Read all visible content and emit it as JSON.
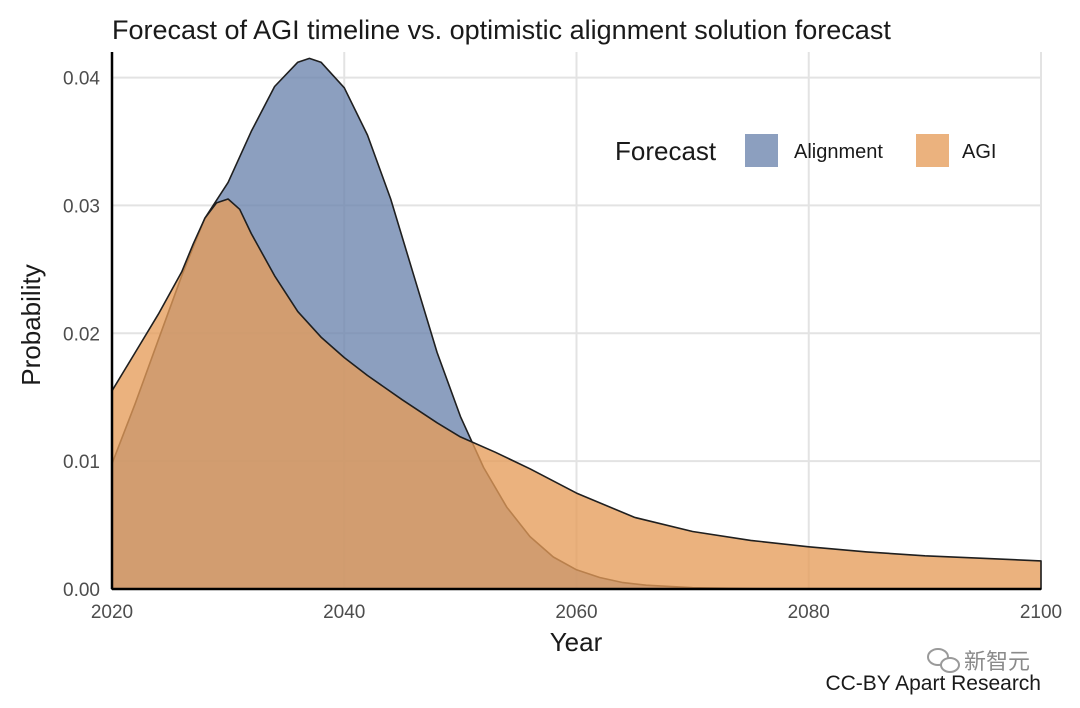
{
  "chart_data": {
    "type": "area",
    "title": "Forecast of AGI timeline vs. optimistic alignment solution forecast",
    "xlabel": "Year",
    "ylabel": "Probability",
    "xlim": [
      2020,
      2100
    ],
    "ylim": [
      0,
      0.042
    ],
    "x_ticks": [
      2020,
      2040,
      2060,
      2080,
      2100
    ],
    "x_tick_labels": [
      "2020",
      "2040",
      "2060",
      "2080",
      "2100"
    ],
    "y_ticks": [
      0,
      0.01,
      0.02,
      0.03,
      0.04
    ],
    "y_tick_labels": [
      "0.00",
      "0.01",
      "0.02",
      "0.03",
      "0.04"
    ],
    "grid": true,
    "legend": {
      "title": "Forecast",
      "position": "top-right",
      "entries": [
        "Alignment",
        "AGI"
      ]
    },
    "caption": "CC-BY Apart Research",
    "watermark": "新智元",
    "series": [
      {
        "name": "Alignment",
        "color": "#6b84ad",
        "x": [
          2020,
          2022,
          2024,
          2026,
          2028,
          2030,
          2032,
          2034,
          2036,
          2037,
          2038,
          2040,
          2042,
          2044,
          2046,
          2048,
          2050,
          2052,
          2054,
          2056,
          2058,
          2060,
          2062,
          2064,
          2066,
          2068,
          2070,
          2075,
          2080,
          2090,
          2100
        ],
        "values": [
          0.0098,
          0.0145,
          0.0195,
          0.0245,
          0.029,
          0.0318,
          0.0358,
          0.0393,
          0.0412,
          0.0415,
          0.0412,
          0.0392,
          0.0355,
          0.0305,
          0.0245,
          0.0185,
          0.0135,
          0.0095,
          0.0064,
          0.0041,
          0.0025,
          0.0015,
          0.0009,
          0.0005,
          0.0003,
          0.0002,
          0.0001,
          2e-05,
          0.0,
          0.0,
          0.0
        ]
      },
      {
        "name": "AGI",
        "color": "#e59c5a",
        "x": [
          2020,
          2022,
          2024,
          2026,
          2027,
          2028,
          2029,
          2030,
          2031,
          2032,
          2034,
          2036,
          2038,
          2040,
          2042,
          2045,
          2048,
          2050,
          2053,
          2056,
          2060,
          2065,
          2070,
          2075,
          2080,
          2085,
          2090,
          2095,
          2100
        ],
        "values": [
          0.0155,
          0.0185,
          0.0215,
          0.0248,
          0.027,
          0.029,
          0.0302,
          0.0305,
          0.0297,
          0.0278,
          0.0245,
          0.0217,
          0.0197,
          0.0181,
          0.0167,
          0.0148,
          0.013,
          0.0119,
          0.0107,
          0.0094,
          0.0075,
          0.0056,
          0.0045,
          0.0038,
          0.0033,
          0.0029,
          0.0026,
          0.0024,
          0.0022
        ]
      }
    ]
  }
}
